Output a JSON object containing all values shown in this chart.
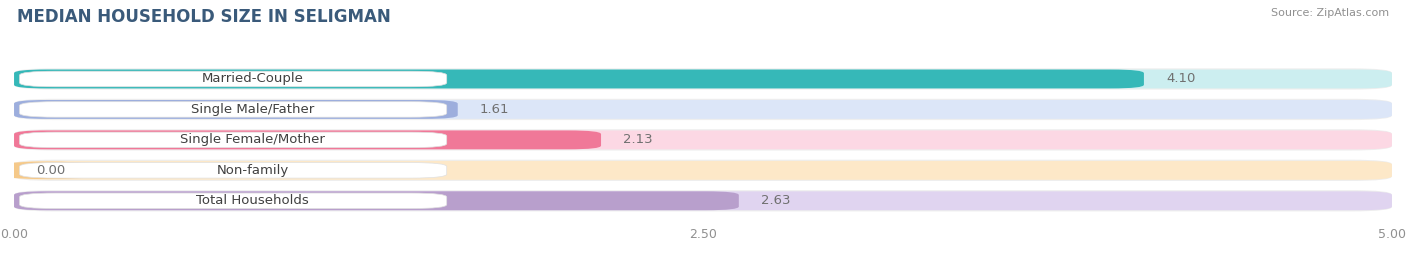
{
  "title": "MEDIAN HOUSEHOLD SIZE IN SELIGMAN",
  "source": "Source: ZipAtlas.com",
  "categories": [
    "Married-Couple",
    "Single Male/Father",
    "Single Female/Mother",
    "Non-family",
    "Total Households"
  ],
  "values": [
    4.1,
    1.61,
    2.13,
    0.0,
    2.63
  ],
  "bar_colors": [
    "#36b8b8",
    "#9daedd",
    "#f07898",
    "#f5c98a",
    "#b89fcc"
  ],
  "bar_background_colors": [
    "#cceef0",
    "#dce6f8",
    "#fcd8e4",
    "#fde8c8",
    "#e0d4f0"
  ],
  "row_background_color": "#f0f0f0",
  "xlim": [
    0,
    5.0
  ],
  "xticks": [
    0.0,
    2.5,
    5.0
  ],
  "xtick_labels": [
    "0.00",
    "2.50",
    "5.00"
  ],
  "value_label_color": "#707070",
  "bar_height": 0.62,
  "background_color": "#ffffff",
  "title_fontsize": 12,
  "label_fontsize": 9.5,
  "value_fontsize": 9.5,
  "title_color": "#3a5a7a"
}
